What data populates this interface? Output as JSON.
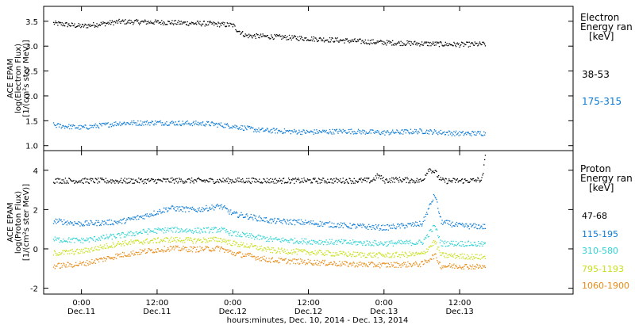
{
  "chart_data": [
    {
      "type": "scatter",
      "panel": "electron",
      "ylabel_lines": [
        "ACE EPAM",
        "log(Electron Flux)",
        "[1/(cm²s ster MeV)]"
      ],
      "ylim": [
        0.9,
        3.8
      ],
      "yticks": [
        "1.0",
        "1.5",
        "2.0",
        "2.5",
        "3.0",
        "3.5"
      ],
      "ytick_values": [
        1.0,
        1.5,
        2.0,
        2.5,
        3.0,
        3.5
      ],
      "legend_title": [
        "Electron",
        "Energy ran",
        "[keV]"
      ],
      "legend_placement": "right",
      "series": [
        {
          "name": "38-53",
          "color": "#000000",
          "x": [
            -4.5,
            0,
            6,
            12,
            20,
            24,
            24.5,
            26,
            30,
            36,
            42,
            48,
            54,
            60,
            64
          ],
          "y": [
            3.47,
            3.41,
            3.5,
            3.49,
            3.46,
            3.43,
            3.35,
            3.22,
            3.2,
            3.16,
            3.12,
            3.08,
            3.06,
            3.04,
            3.05
          ]
        },
        {
          "name": "175-315",
          "color": "#0a7ad6",
          "x": [
            -4.5,
            0,
            6,
            12,
            20,
            24,
            28,
            36,
            42,
            48,
            54,
            60,
            64
          ],
          "y": [
            1.42,
            1.37,
            1.46,
            1.47,
            1.45,
            1.4,
            1.32,
            1.28,
            1.3,
            1.27,
            1.3,
            1.25,
            1.26
          ]
        }
      ]
    },
    {
      "type": "scatter",
      "panel": "proton",
      "ylabel_lines": [
        "ACE EPAM",
        "log(Proton Flux)",
        "[1/(cm²s ster MeV)]"
      ],
      "ylim": [
        -2.3,
        5.0
      ],
      "yticks": [
        "-2",
        "0",
        "2",
        "4"
      ],
      "ytick_values": [
        -2,
        0,
        2,
        4
      ],
      "legend_title": [
        "Proton",
        "Energy ran",
        "[keV]"
      ],
      "legend_placement": "right",
      "series": [
        {
          "name": "47-68",
          "color": "#000000",
          "x": [
            -4.5,
            6,
            12,
            14,
            15,
            20,
            24,
            36,
            46,
            47,
            48,
            50,
            54,
            55,
            56,
            57,
            58,
            60,
            62,
            63.5,
            64
          ],
          "y": [
            3.5,
            3.48,
            3.49,
            3.5,
            3.5,
            3.49,
            3.5,
            3.49,
            3.5,
            3.75,
            3.5,
            3.55,
            3.48,
            4.1,
            3.95,
            3.5,
            3.48,
            3.49,
            3.5,
            3.55,
            4.7
          ]
        },
        {
          "name": "115-195",
          "color": "#0a7ad6",
          "x": [
            -4.5,
            0,
            6,
            10,
            14,
            18,
            22,
            24,
            26,
            30,
            36,
            42,
            48,
            54,
            56,
            57,
            60,
            64
          ],
          "y": [
            1.45,
            1.3,
            1.4,
            1.7,
            2.1,
            2.0,
            2.2,
            1.8,
            1.7,
            1.45,
            1.35,
            1.2,
            1.1,
            1.3,
            2.8,
            1.4,
            1.2,
            1.15
          ]
        },
        {
          "name": "310-580",
          "color": "#2ed3d3",
          "x": [
            -4.5,
            0,
            6,
            10,
            14,
            18,
            22,
            24,
            26,
            30,
            36,
            42,
            48,
            54,
            56,
            57,
            60,
            64
          ],
          "y": [
            0.5,
            0.45,
            0.7,
            0.9,
            1.0,
            0.95,
            1.0,
            0.8,
            0.7,
            0.5,
            0.4,
            0.35,
            0.3,
            0.35,
            1.2,
            0.3,
            0.3,
            0.25
          ]
        },
        {
          "name": "795-1193",
          "color": "#c8e018",
          "x": [
            -4.5,
            0,
            6,
            10,
            14,
            18,
            22,
            24,
            26,
            30,
            36,
            42,
            48,
            54,
            56,
            57,
            60,
            64
          ],
          "y": [
            -0.2,
            -0.1,
            0.3,
            0.4,
            0.5,
            0.45,
            0.5,
            0.3,
            0.2,
            -0.05,
            -0.15,
            -0.25,
            -0.3,
            -0.25,
            0.4,
            -0.3,
            -0.35,
            -0.4
          ]
        },
        {
          "name": "1060-1900",
          "color": "#e88a14",
          "x": [
            -4.5,
            0,
            6,
            10,
            14,
            18,
            22,
            24,
            26,
            30,
            36,
            42,
            48,
            54,
            56,
            57,
            60,
            64
          ],
          "y": [
            -0.85,
            -0.75,
            -0.3,
            -0.1,
            0.05,
            0.0,
            0.05,
            -0.2,
            -0.3,
            -0.55,
            -0.65,
            -0.75,
            -0.8,
            -0.75,
            -0.3,
            -0.85,
            -0.85,
            -0.9
          ]
        }
      ]
    }
  ],
  "x_axis": {
    "xlim": [
      -6.0,
      78.0
    ],
    "tick_hours": [
      0,
      12,
      24,
      36,
      48,
      60
    ],
    "tick_times": [
      "0:00",
      "12:00",
      "0:00",
      "12:00",
      "0:00",
      "12:00"
    ],
    "tick_dates": [
      "Dec.11",
      "Dec.11",
      "Dec.12",
      "Dec.12",
      "Dec.13",
      "Dec.13"
    ],
    "xlabel": "hours:minutes, Dec. 10, 2014 - Dec. 13, 2014"
  }
}
